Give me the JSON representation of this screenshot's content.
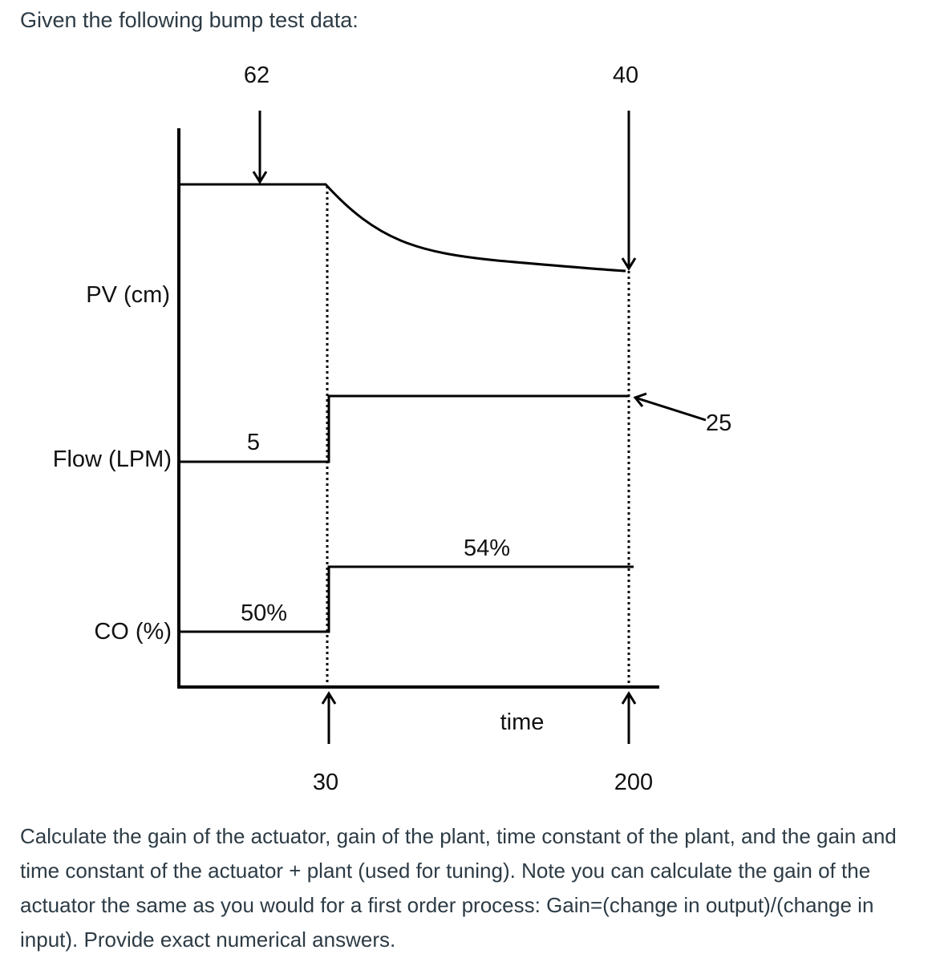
{
  "question": {
    "intro": "Given the following bump test data:",
    "body": "Calculate the gain of the actuator, gain of the plant, time constant of the plant, and the gain and time constant of the actuator + plant (used for tuning). Note you can calculate the gain of the actuator the same as you would for a first order process: Gain=(change in output)/(change in input). Provide exact numerical answers."
  },
  "diagram": {
    "signals": {
      "pv": "PV (cm)",
      "flow": "Flow (LPM)",
      "co": "CO (%)"
    },
    "x_axis_label": "time",
    "annotations": {
      "pv_initial": "62",
      "pv_final": "40",
      "flow_initial": "5",
      "flow_final": "25",
      "co_initial": "50%",
      "co_final": "54%",
      "step_time": "30",
      "end_time": "200"
    }
  }
}
